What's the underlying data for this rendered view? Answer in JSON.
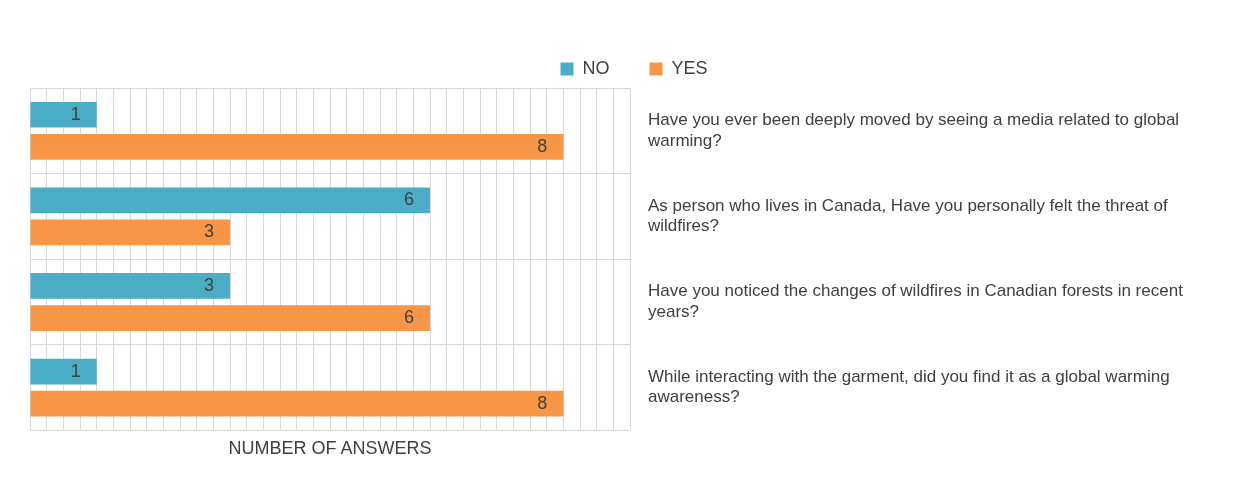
{
  "chart_data": {
    "type": "bar",
    "orientation": "horizontal",
    "xlabel": "NUMBER OF ANSWERS",
    "categories": [
      "Have you ever been deeply moved by seeing a media related to global warming?",
      "As person who lives in Canada, Have you personally felt the threat of wildfires?",
      "Have you noticed the changes of wildfires in Canadian forests in recent years?",
      "While interacting with the garment, did you find it as a global warming awareness?"
    ],
    "series": [
      {
        "name": "NO",
        "color": "#4bacc6",
        "values": [
          1,
          6,
          3,
          1
        ]
      },
      {
        "name": "YES",
        "color": "#f79646",
        "values": [
          8,
          3,
          6,
          8
        ]
      }
    ],
    "xlim": [
      0,
      9
    ],
    "xticks": [
      {
        "value": 0,
        "label": null
      },
      {
        "value": 0.25,
        "label": null
      },
      {
        "value": 0.5,
        "label": null
      },
      {
        "value": 0.75,
        "label": null
      },
      {
        "value": 1,
        "label": null
      },
      {
        "value": 1.25,
        "label": null
      },
      {
        "value": 1.5,
        "label": null
      },
      {
        "value": 1.75,
        "label": null
      },
      {
        "value": 2,
        "label": null
      },
      {
        "value": 2.25,
        "label": null
      },
      {
        "value": 2.5,
        "label": null
      },
      {
        "value": 2.75,
        "label": null
      },
      {
        "value": 3,
        "label": null
      },
      {
        "value": 3.25,
        "label": null
      },
      {
        "value": 3.5,
        "label": null
      },
      {
        "value": 3.75,
        "label": null
      },
      {
        "value": 4,
        "label": null
      },
      {
        "value": 4.25,
        "label": null
      },
      {
        "value": 4.5,
        "label": null
      },
      {
        "value": 4.75,
        "label": null
      },
      {
        "value": 5,
        "label": null
      },
      {
        "value": 5.25,
        "label": null
      },
      {
        "value": 5.5,
        "label": null
      },
      {
        "value": 5.75,
        "label": null
      },
      {
        "value": 6,
        "label": null
      },
      {
        "value": 6.25,
        "label": null
      },
      {
        "value": 6.5,
        "label": null
      },
      {
        "value": 6.75,
        "label": null
      },
      {
        "value": 7,
        "label": null
      },
      {
        "value": 7.25,
        "label": null
      },
      {
        "value": 7.5,
        "label": null
      },
      {
        "value": 7.75,
        "label": null
      },
      {
        "value": 8,
        "label": null
      },
      {
        "value": 8.25,
        "label": null
      },
      {
        "value": 8.5,
        "label": null
      },
      {
        "value": 8.75,
        "label": null
      },
      {
        "value": 9,
        "label": null
      }
    ],
    "tick_labels": "y",
    "grid": true,
    "legend": "top",
    "data_labels": true
  }
}
